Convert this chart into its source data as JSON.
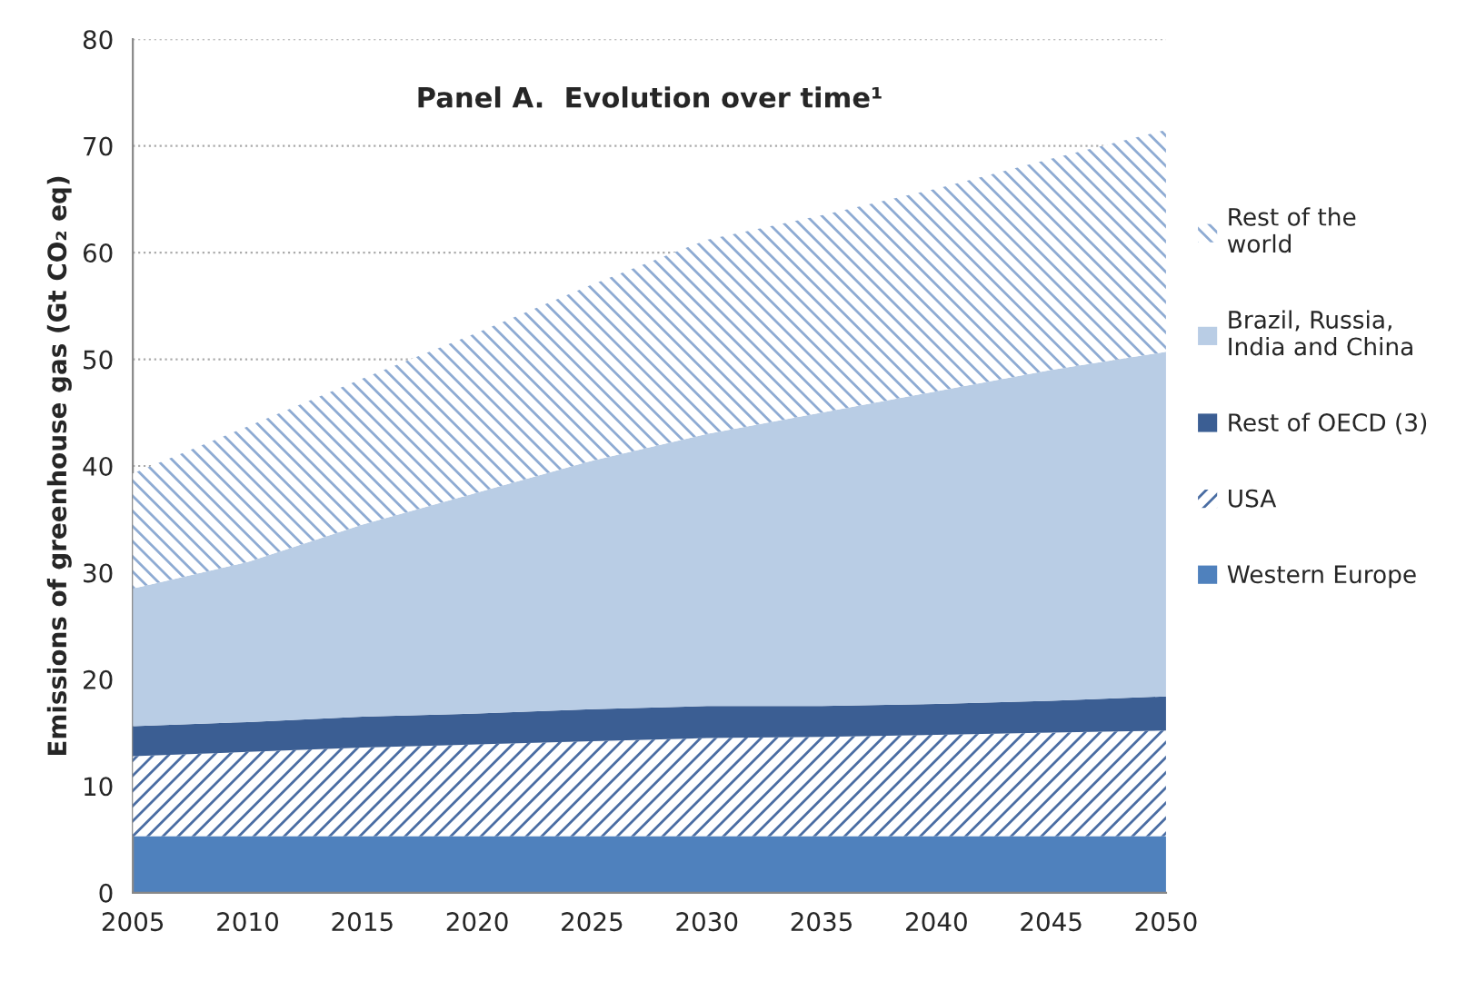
{
  "chart_data": {
    "type": "area",
    "stacked": true,
    "title": "Panel A.  Evolution over time¹",
    "ylabel": "Emissions of greenhouse gas (Gt CO₂ eq)",
    "x": [
      2005,
      2010,
      2015,
      2020,
      2025,
      2030,
      2035,
      2040,
      2045,
      2050
    ],
    "series": [
      {
        "name": "Western Europe",
        "color": "#4f81bd",
        "values": [
          5.3,
          5.3,
          5.3,
          5.3,
          5.3,
          5.3,
          5.3,
          5.3,
          5.3,
          5.3
        ]
      },
      {
        "name": "USA",
        "color": "#4a6da3",
        "values": [
          7.5,
          7.9,
          8.3,
          8.6,
          8.9,
          9.2,
          9.3,
          9.5,
          9.7,
          9.9
        ]
      },
      {
        "name": "Rest of OECD (3)",
        "color": "#3b5e93",
        "values": [
          2.8,
          2.8,
          2.9,
          2.9,
          3.0,
          3.0,
          2.9,
          2.9,
          3.0,
          3.2
        ]
      },
      {
        "name": "Brazil, Russia,\nIndia and China",
        "color": "#b9cde5",
        "values": [
          12.9,
          15.0,
          18.0,
          20.7,
          23.3,
          25.5,
          27.5,
          29.3,
          31.0,
          32.3
        ]
      },
      {
        "name": "Rest of the\nworld",
        "color": "#8eabd3",
        "values": [
          10.8,
          12.7,
          13.7,
          15.0,
          16.5,
          18.2,
          18.5,
          19.0,
          19.8,
          20.8
        ]
      }
    ],
    "xlim": [
      2005,
      2050
    ],
    "xticks": [
      2005,
      2010,
      2015,
      2020,
      2025,
      2030,
      2035,
      2040,
      2045,
      2050
    ],
    "ylim": [
      0,
      80
    ],
    "yticks": [
      0,
      10,
      20,
      30,
      40,
      50,
      60,
      70,
      80
    ],
    "grid": "y",
    "legend": "right"
  }
}
